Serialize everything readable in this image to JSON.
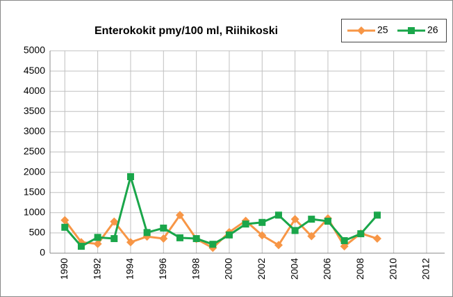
{
  "chart_data": {
    "type": "line",
    "title": "Enterokokit pmy/100 ml, Riihikoski",
    "x": [
      1990,
      1991,
      1992,
      1993,
      1994,
      1995,
      1996,
      1997,
      1998,
      1999,
      2000,
      2001,
      2002,
      2003,
      2004,
      2005,
      2006,
      2007,
      2008,
      2009
    ],
    "series": [
      {
        "name": "25",
        "color": "#f79646",
        "marker": "diamond",
        "values": [
          815,
          270,
          230,
          780,
          270,
          410,
          360,
          940,
          350,
          130,
          520,
          800,
          440,
          200,
          840,
          420,
          860,
          170,
          490,
          360
        ]
      },
      {
        "name": "26",
        "color": "#1aa64a",
        "marker": "square",
        "values": [
          640,
          170,
          390,
          360,
          1890,
          510,
          620,
          380,
          360,
          220,
          450,
          720,
          760,
          940,
          560,
          840,
          790,
          310,
          480,
          940
        ]
      }
    ],
    "xlim": [
      1989.1,
      2013.1
    ],
    "xticks": [
      1990,
      1992,
      1994,
      1996,
      1998,
      2000,
      2002,
      2004,
      2006,
      2008,
      2010,
      2012
    ],
    "ylim": [
      0,
      5000
    ],
    "yticks": [
      0,
      500,
      1000,
      1500,
      2000,
      2500,
      3000,
      3500,
      4000,
      4500,
      5000
    ],
    "grid": true,
    "legend": "top-right"
  }
}
